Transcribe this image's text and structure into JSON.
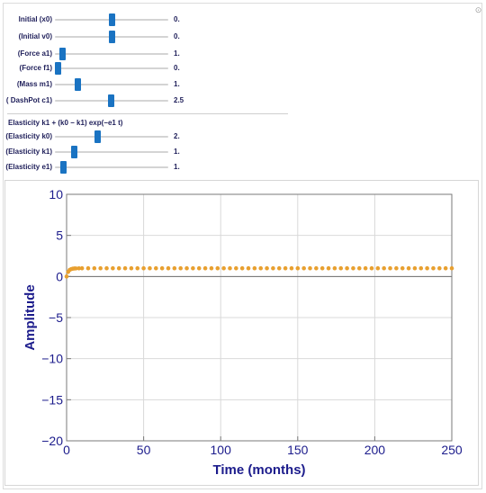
{
  "controls": [
    {
      "label": "Initial (x0)",
      "value_text": "0.",
      "position": 0.5
    },
    {
      "label": "(Initial v0)",
      "value_text": "0.",
      "position": 0.5
    },
    {
      "label": "(Force a1)",
      "value_text": "1.",
      "position": 0.06
    },
    {
      "label": "(Force f1)",
      "value_text": "0.",
      "position": 0.02
    },
    {
      "label": "(Mass m1)",
      "value_text": "1.",
      "position": 0.2
    },
    {
      "label": "( DashPot c1)",
      "value_text": "2.5",
      "position": 0.49
    }
  ],
  "elasticity": {
    "formula": "Elasticity k1 + (k0 − k1) exp(−e1 t)",
    "controls": [
      {
        "label": "(Elasticity k0)",
        "value_text": "2.",
        "position": 0.37
      },
      {
        "label": "(Elasticity k1)",
        "value_text": "1.",
        "position": 0.17
      },
      {
        "label": "(Elasticity e1)",
        "value_text": "1.",
        "position": 0.07
      }
    ]
  },
  "chart_data": {
    "type": "scatter",
    "title": "",
    "xlabel": "Time (months)",
    "ylabel": "Amplitude",
    "xlim": [
      0,
      250
    ],
    "ylim": [
      -20,
      10
    ],
    "xticks": [
      0,
      50,
      100,
      150,
      200,
      250
    ],
    "yticks": [
      -20,
      -15,
      -10,
      -5,
      0,
      5,
      10
    ],
    "grid": true,
    "colors": {
      "axis_text": "#1c1c8c",
      "points": "#e8a030",
      "grid": "#d9d9d9",
      "frame": "#7a7a7a"
    },
    "series": [
      {
        "points": [
          [
            0,
            0
          ],
          [
            1,
            0.55
          ],
          [
            2,
            0.8
          ],
          [
            3,
            0.9
          ],
          [
            4,
            0.95
          ],
          [
            5,
            0.97
          ],
          [
            6,
            0.98
          ],
          [
            8,
            0.99
          ],
          [
            10,
            1
          ],
          [
            14,
            1
          ],
          [
            18,
            1
          ],
          [
            22,
            1
          ],
          [
            26,
            1
          ],
          [
            30,
            1
          ],
          [
            34,
            1
          ],
          [
            38,
            1
          ],
          [
            42,
            1
          ],
          [
            46,
            1
          ],
          [
            50,
            1
          ],
          [
            54,
            1
          ],
          [
            58,
            1
          ],
          [
            62,
            1
          ],
          [
            66,
            1
          ],
          [
            70,
            1
          ],
          [
            74,
            1
          ],
          [
            78,
            1
          ],
          [
            82,
            1
          ],
          [
            86,
            1
          ],
          [
            90,
            1
          ],
          [
            94,
            1
          ],
          [
            98,
            1
          ],
          [
            102,
            1
          ],
          [
            106,
            1
          ],
          [
            110,
            1
          ],
          [
            114,
            1
          ],
          [
            118,
            1
          ],
          [
            122,
            1
          ],
          [
            126,
            1
          ],
          [
            130,
            1
          ],
          [
            134,
            1
          ],
          [
            138,
            1
          ],
          [
            142,
            1
          ],
          [
            146,
            1
          ],
          [
            150,
            1
          ],
          [
            154,
            1
          ],
          [
            158,
            1
          ],
          [
            162,
            1
          ],
          [
            166,
            1
          ],
          [
            170,
            1
          ],
          [
            174,
            1
          ],
          [
            178,
            1
          ],
          [
            182,
            1
          ],
          [
            186,
            1
          ],
          [
            190,
            1
          ],
          [
            194,
            1
          ],
          [
            198,
            1
          ],
          [
            202,
            1
          ],
          [
            206,
            1
          ],
          [
            210,
            1
          ],
          [
            214,
            1
          ],
          [
            218,
            1
          ],
          [
            222,
            1
          ],
          [
            226,
            1
          ],
          [
            230,
            1
          ],
          [
            234,
            1
          ],
          [
            238,
            1
          ],
          [
            242,
            1
          ],
          [
            246,
            1
          ],
          [
            250,
            1
          ]
        ]
      }
    ]
  }
}
